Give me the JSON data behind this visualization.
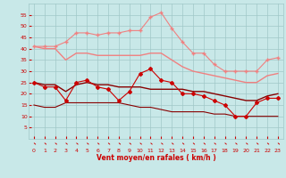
{
  "x": [
    0,
    1,
    2,
    3,
    4,
    5,
    6,
    7,
    8,
    9,
    10,
    11,
    12,
    13,
    14,
    15,
    16,
    17,
    18,
    19,
    20,
    21,
    22,
    23
  ],
  "series": [
    {
      "name": "rafales_high",
      "color": "#f08080",
      "linewidth": 0.8,
      "marker": "+",
      "markersize": 3,
      "values": [
        41,
        41,
        41,
        43,
        47,
        47,
        46,
        47,
        47,
        48,
        48,
        54,
        56,
        49,
        43,
        38,
        38,
        33,
        30,
        30,
        30,
        30,
        35,
        36
      ]
    },
    {
      "name": "rafales_mid",
      "color": "#f08080",
      "linewidth": 1.0,
      "marker": "None",
      "markersize": 0,
      "values": [
        41,
        40,
        40,
        35,
        38,
        38,
        37,
        37,
        37,
        37,
        37,
        38,
        38,
        35,
        32,
        30,
        29,
        28,
        27,
        26,
        25,
        25,
        28,
        29
      ]
    },
    {
      "name": "vent_moyen_high",
      "color": "#cc0000",
      "linewidth": 0.8,
      "marker": "D",
      "markersize": 2,
      "values": [
        25,
        23,
        23,
        17,
        25,
        26,
        23,
        22,
        17,
        21,
        29,
        31,
        26,
        25,
        20,
        20,
        19,
        17,
        15,
        10,
        10,
        16,
        18,
        18
      ]
    },
    {
      "name": "vent_moyen_low",
      "color": "#880000",
      "linewidth": 1.0,
      "marker": "None",
      "markersize": 0,
      "values": [
        25,
        24,
        24,
        21,
        24,
        25,
        24,
        24,
        23,
        23,
        23,
        22,
        22,
        22,
        22,
        21,
        21,
        20,
        19,
        18,
        17,
        17,
        19,
        20
      ]
    },
    {
      "name": "vent_min",
      "color": "#880000",
      "linewidth": 0.8,
      "marker": "None",
      "markersize": 0,
      "values": [
        15,
        14,
        14,
        16,
        16,
        16,
        16,
        16,
        16,
        15,
        14,
        14,
        13,
        12,
        12,
        12,
        12,
        11,
        11,
        10,
        10,
        10,
        10,
        10
      ]
    }
  ],
  "xlabel": "Vent moyen/en rafales ( km/h )",
  "ylim": [
    0,
    60
  ],
  "yticks": [
    5,
    10,
    15,
    20,
    25,
    30,
    35,
    40,
    45,
    50,
    55
  ],
  "xlim": [
    -0.5,
    23.5
  ],
  "xticks": [
    0,
    1,
    2,
    3,
    4,
    5,
    6,
    7,
    8,
    9,
    10,
    11,
    12,
    13,
    14,
    15,
    16,
    17,
    18,
    19,
    20,
    21,
    22,
    23
  ],
  "bg_color": "#c8e8e8",
  "grid_color": "#a0c8c8",
  "tick_color": "#cc0000",
  "label_color": "#cc0000"
}
